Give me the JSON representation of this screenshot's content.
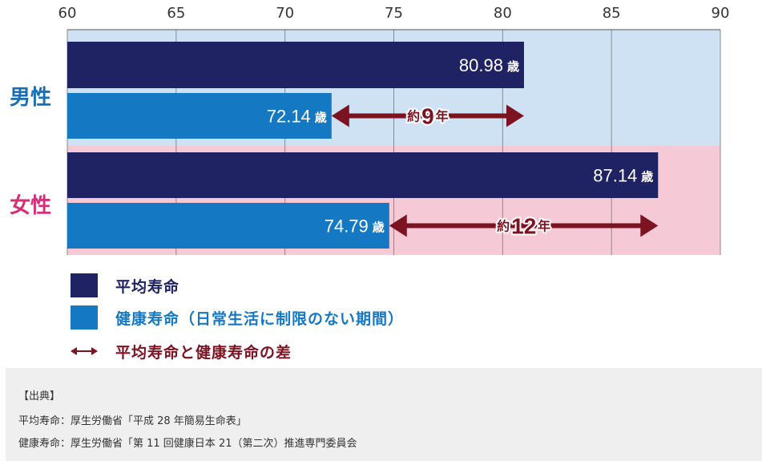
{
  "chart_data": {
    "type": "bar",
    "orientation": "horizontal",
    "x_ticks": [
      60,
      65,
      70,
      75,
      80,
      85,
      90
    ],
    "xlim": [
      60,
      90
    ],
    "grid": true,
    "groups": [
      {
        "label": "男性",
        "label_color": "#1a6fb3",
        "band_color": "#cfe2f4",
        "bars": [
          {
            "series": "平均寿命",
            "value": 80.98,
            "value_label": "80.98",
            "unit": "歳"
          },
          {
            "series": "健康寿命",
            "value": 72.14,
            "value_label": "72.14",
            "unit": "歳"
          }
        ],
        "difference": {
          "prefix": "約",
          "value": 9,
          "value_label": "9",
          "unit": "年",
          "from": 72.14,
          "to": 80.98
        }
      },
      {
        "label": "女性",
        "label_color": "#d4307a",
        "band_color": "#f5c9d6",
        "bars": [
          {
            "series": "平均寿命",
            "value": 87.14,
            "value_label": "87.14",
            "unit": "歳"
          },
          {
            "series": "健康寿命",
            "value": 74.79,
            "value_label": "74.79",
            "unit": "歳"
          }
        ],
        "difference": {
          "prefix": "約",
          "value": 12,
          "value_label": "12",
          "unit": "年",
          "from": 74.79,
          "to": 87.14
        }
      }
    ],
    "series": [
      {
        "name": "平均寿命",
        "color": "#1f2263"
      },
      {
        "name": "健康寿命",
        "color": "#1578c2"
      }
    ],
    "difference_color": "#7b1321"
  },
  "legend": {
    "items": [
      {
        "label": "平均寿命",
        "color": "#1f2263",
        "text_color": "#1f2263"
      },
      {
        "label": "健康寿命（日常生活に制限のない期間）",
        "color": "#1578c2",
        "text_color": "#1578c2"
      },
      {
        "label": "平均寿命と健康寿命の差",
        "color": "#7b1321",
        "text_color": "#7b1321"
      }
    ]
  },
  "source": {
    "heading": "【出典】",
    "lines": [
      "平均寿命：厚生労働省「平成 28 年簡易生命表」",
      "健康寿命：厚生労働省「第 11 回健康日本 21（第二次）推進専門委員会"
    ]
  }
}
